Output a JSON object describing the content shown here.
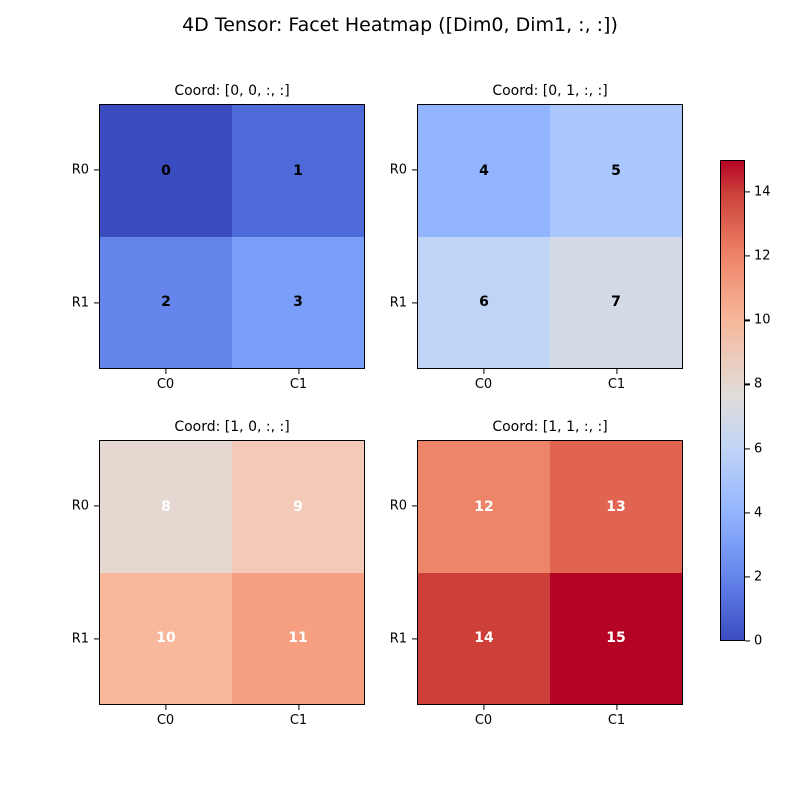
{
  "figure": {
    "title": "4D Tensor: Facet Heatmap ([Dim0, Dim1, :, :])",
    "background_color": "#ffffff"
  },
  "chart_data": {
    "type": "heatmap",
    "title": "4D Tensor: Facet Heatmap ([Dim0, Dim1, :, :])",
    "colormap": "coolwarm",
    "vmin": 0,
    "vmax": 15,
    "grid": false,
    "row_labels": [
      "R0",
      "R1"
    ],
    "col_labels": [
      "C0",
      "C1"
    ],
    "facets": [
      {
        "title": "Coord: [0, 0, :, :]",
        "values": [
          [
            0,
            1
          ],
          [
            2,
            3
          ]
        ]
      },
      {
        "title": "Coord: [0, 1, :, :]",
        "values": [
          [
            4,
            5
          ],
          [
            6,
            7
          ]
        ]
      },
      {
        "title": "Coord: [1, 0, :, :]",
        "values": [
          [
            8,
            9
          ],
          [
            10,
            11
          ]
        ]
      },
      {
        "title": "Coord: [1, 1, :, :]",
        "values": [
          [
            12,
            13
          ],
          [
            14,
            15
          ]
        ]
      }
    ],
    "value_colors": {
      "0": "#3b4cc0",
      "1": "#4e6ad8",
      "2": "#6585ec",
      "3": "#7b9ef9",
      "4": "#93b5ff",
      "5": "#aac7fe",
      "6": "#c0d4f5",
      "7": "#d4dbe7",
      "8": "#e5d8d0",
      "9": "#f2cab7",
      "10": "#f7b89c",
      "11": "#f6a081",
      "12": "#ee8568",
      "13": "#e06450",
      "14": "#cc4039",
      "15": "#b40426"
    },
    "cell_text_colors": {
      "dark_values": "#000000",
      "light_values": "#ffffff"
    },
    "label_white_threshold": 8,
    "colorbar": {
      "position": "right",
      "range": [
        0,
        15
      ],
      "ticks": [
        0,
        2,
        4,
        6,
        8,
        10,
        12,
        14
      ],
      "gradient": [
        {
          "value": 0,
          "color": "#3b4cc0"
        },
        {
          "value": 2,
          "color": "#6585ec"
        },
        {
          "value": 4,
          "color": "#93b5ff"
        },
        {
          "value": 6,
          "color": "#c0d4f5"
        },
        {
          "value": 7.5,
          "color": "#dddddd"
        },
        {
          "value": 8,
          "color": "#e5d8d0"
        },
        {
          "value": 10,
          "color": "#f7b89c"
        },
        {
          "value": 12,
          "color": "#ee8568"
        },
        {
          "value": 14,
          "color": "#cc4039"
        },
        {
          "value": 15,
          "color": "#b40426"
        }
      ]
    }
  }
}
